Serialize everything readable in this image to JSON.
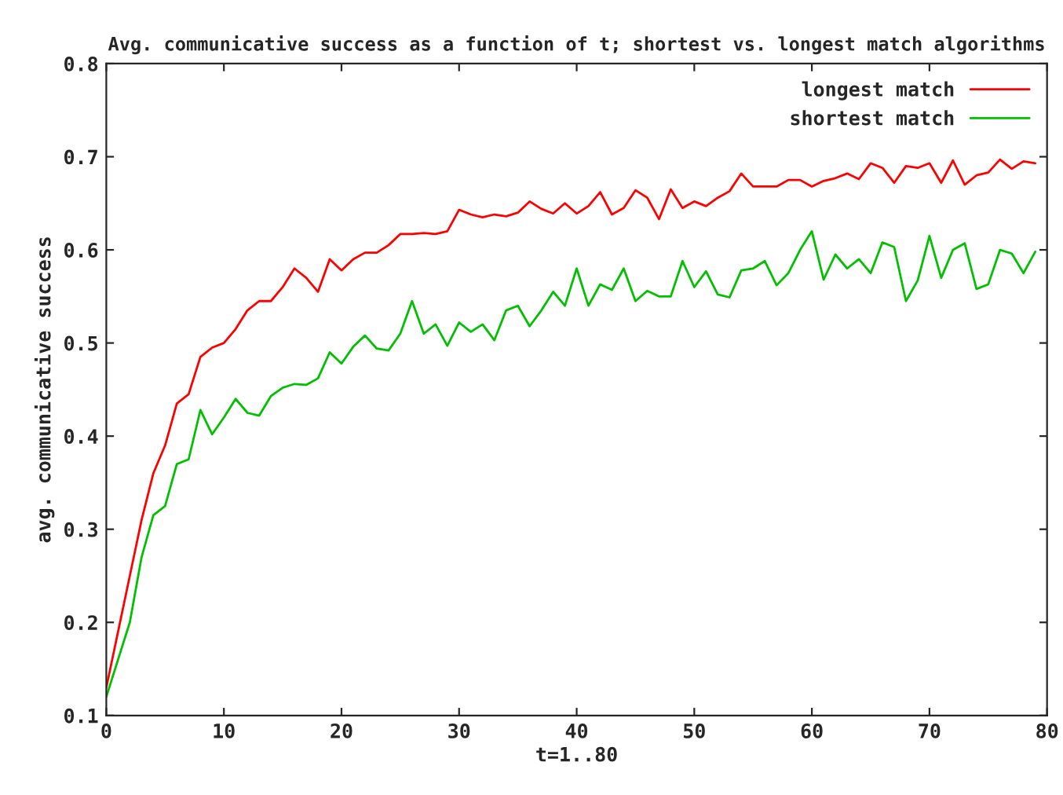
{
  "chart_data": {
    "type": "line",
    "title": "Avg. communicative success as a function of t; shortest vs. longest match algorithms",
    "xlabel": "t=1..80",
    "ylabel": "avg. communicative success",
    "x": [
      0,
      1,
      2,
      3,
      4,
      5,
      6,
      7,
      8,
      9,
      10,
      11,
      12,
      13,
      14,
      15,
      16,
      17,
      18,
      19,
      20,
      21,
      22,
      23,
      24,
      25,
      26,
      27,
      28,
      29,
      30,
      31,
      32,
      33,
      34,
      35,
      36,
      37,
      38,
      39,
      40,
      41,
      42,
      43,
      44,
      45,
      46,
      47,
      48,
      49,
      50,
      51,
      52,
      53,
      54,
      55,
      56,
      57,
      58,
      59,
      60,
      61,
      62,
      63,
      64,
      65,
      66,
      67,
      68,
      69,
      70,
      71,
      72,
      73,
      74,
      75,
      76,
      77,
      78,
      79
    ],
    "series": [
      {
        "name": "longest match",
        "color": "#ff0000",
        "values": [
          0.13,
          0.19,
          0.25,
          0.31,
          0.36,
          0.39,
          0.435,
          0.445,
          0.485,
          0.495,
          0.5,
          0.515,
          0.535,
          0.545,
          0.545,
          0.56,
          0.58,
          0.57,
          0.555,
          0.59,
          0.578,
          0.59,
          0.597,
          0.597,
          0.605,
          0.617,
          0.617,
          0.618,
          0.617,
          0.62,
          0.643,
          0.638,
          0.635,
          0.638,
          0.636,
          0.64,
          0.652,
          0.644,
          0.639,
          0.65,
          0.639,
          0.647,
          0.662,
          0.638,
          0.645,
          0.664,
          0.656,
          0.633,
          0.665,
          0.645,
          0.652,
          0.647,
          0.656,
          0.663,
          0.682,
          0.668,
          0.668,
          0.668,
          0.675,
          0.675,
          0.668,
          0.674,
          0.677,
          0.682,
          0.676,
          0.693,
          0.688,
          0.672,
          0.69,
          0.688,
          0.693,
          0.672,
          0.696,
          0.67,
          0.68,
          0.683,
          0.697,
          0.687,
          0.695,
          0.693
        ]
      },
      {
        "name": "shortest match",
        "color": "#00c000",
        "values": [
          0.12,
          0.16,
          0.2,
          0.27,
          0.315,
          0.325,
          0.37,
          0.375,
          0.428,
          0.402,
          0.42,
          0.44,
          0.425,
          0.422,
          0.443,
          0.452,
          0.456,
          0.455,
          0.462,
          0.49,
          0.478,
          0.496,
          0.508,
          0.494,
          0.492,
          0.51,
          0.545,
          0.51,
          0.52,
          0.497,
          0.522,
          0.512,
          0.52,
          0.503,
          0.535,
          0.54,
          0.518,
          0.535,
          0.555,
          0.54,
          0.58,
          0.54,
          0.563,
          0.557,
          0.58,
          0.545,
          0.556,
          0.55,
          0.55,
          0.588,
          0.56,
          0.577,
          0.552,
          0.549,
          0.578,
          0.58,
          0.588,
          0.562,
          0.575,
          0.6,
          0.62,
          0.568,
          0.595,
          0.58,
          0.59,
          0.575,
          0.608,
          0.603,
          0.545,
          0.567,
          0.615,
          0.57,
          0.6,
          0.607,
          0.558,
          0.563,
          0.6,
          0.596,
          0.575,
          0.598
        ]
      }
    ],
    "xlim": [
      0,
      80
    ],
    "xticks": [
      0,
      10,
      20,
      30,
      40,
      50,
      60,
      70,
      80
    ],
    "ylim": [
      0.1,
      0.8
    ],
    "yticks": [
      0.1,
      0.2,
      0.3,
      0.4,
      0.5,
      0.6,
      0.7,
      0.8
    ],
    "grid": false,
    "legend": "top right",
    "marker": "none",
    "line_style": "solid"
  }
}
